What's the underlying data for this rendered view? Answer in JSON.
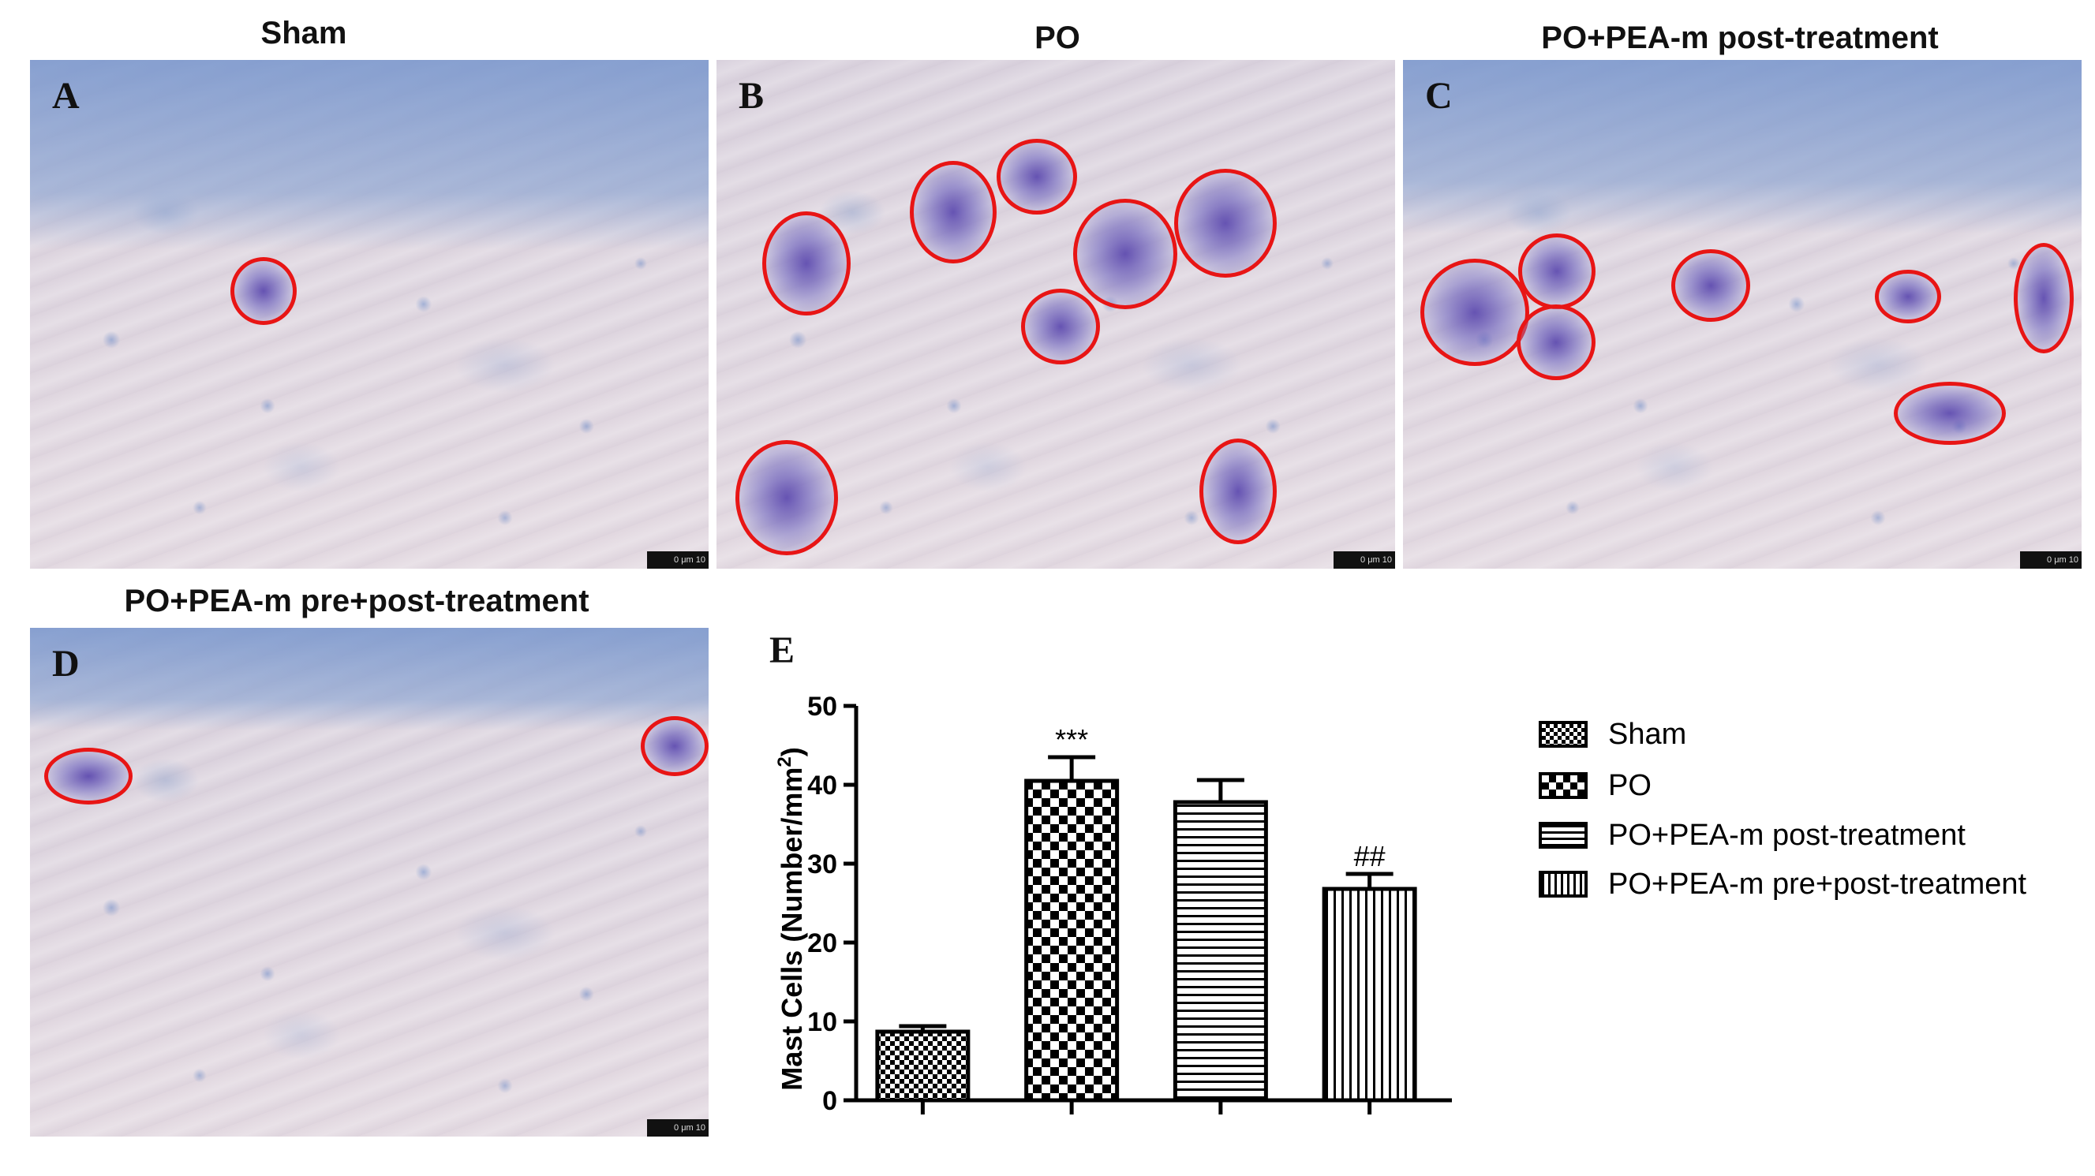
{
  "panels": [
    {
      "letter": "A",
      "title": "Sham",
      "scale": "0 μm 10"
    },
    {
      "letter": "B",
      "title": "PO",
      "scale": "0 μm 10"
    },
    {
      "letter": "C",
      "title": "PO+PEA-m post-treatment",
      "scale": "0 μm 10"
    },
    {
      "letter": "D",
      "title": "PO+PEA-m pre+post-treatment",
      "scale": "0 μm 10"
    }
  ],
  "chart_letter": "E",
  "chart_data": {
    "type": "bar",
    "categories": [
      "Sham",
      "PO",
      "PO+PEA-m post-treatment",
      "PO+PEA-m pre+post-treatment"
    ],
    "values": [
      8.7,
      40.5,
      37.8,
      26.8
    ],
    "errors": [
      0.7,
      3.0,
      2.8,
      1.9
    ],
    "annotations": [
      "",
      "***",
      "",
      "##"
    ],
    "patterns": [
      "checker-fine",
      "checker-coarse",
      "horizontal-lines",
      "vertical-lines"
    ],
    "ylabel_prefix": "Mast Cells (Number/mm",
    "ylabel_sup": "2",
    "ylabel_suffix": ")",
    "yticks": [
      "0",
      "10",
      "20",
      "30",
      "40",
      "50"
    ],
    "ylim": [
      0,
      50
    ],
    "legend_placement": "right",
    "bar_color": "#000000"
  },
  "colors": {
    "circle": "#e81515",
    "stain": "#5a4bb0",
    "tissue_blue": "#8aa3d2"
  }
}
